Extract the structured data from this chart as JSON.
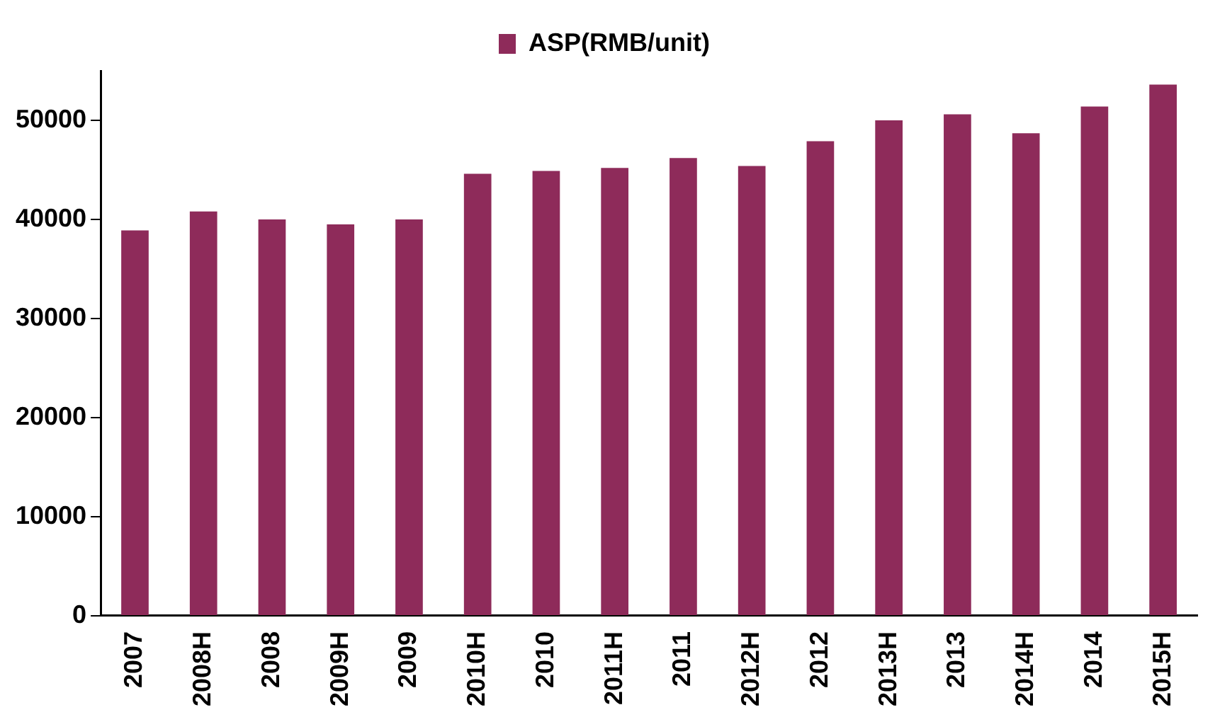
{
  "chart_data": {
    "type": "bar",
    "categories": [
      "2007",
      "2008H",
      "2008",
      "2009H",
      "2009",
      "2010H",
      "2010",
      "2011H",
      "2011",
      "2012H",
      "2012",
      "2013H",
      "2013",
      "2014H",
      "2014",
      "2015H"
    ],
    "series": [
      {
        "name": "ASP(RMB/unit)",
        "color": "#8e2b5a",
        "values": [
          38900,
          40800,
          40000,
          39500,
          40000,
          44600,
          44900,
          45200,
          46200,
          45400,
          47900,
          50000,
          50600,
          48700,
          51400,
          53600
        ]
      }
    ],
    "ylim": [
      0,
      55000
    ],
    "yticks": [
      0,
      10000,
      20000,
      30000,
      40000,
      50000
    ],
    "grid": false,
    "legend": "top"
  }
}
